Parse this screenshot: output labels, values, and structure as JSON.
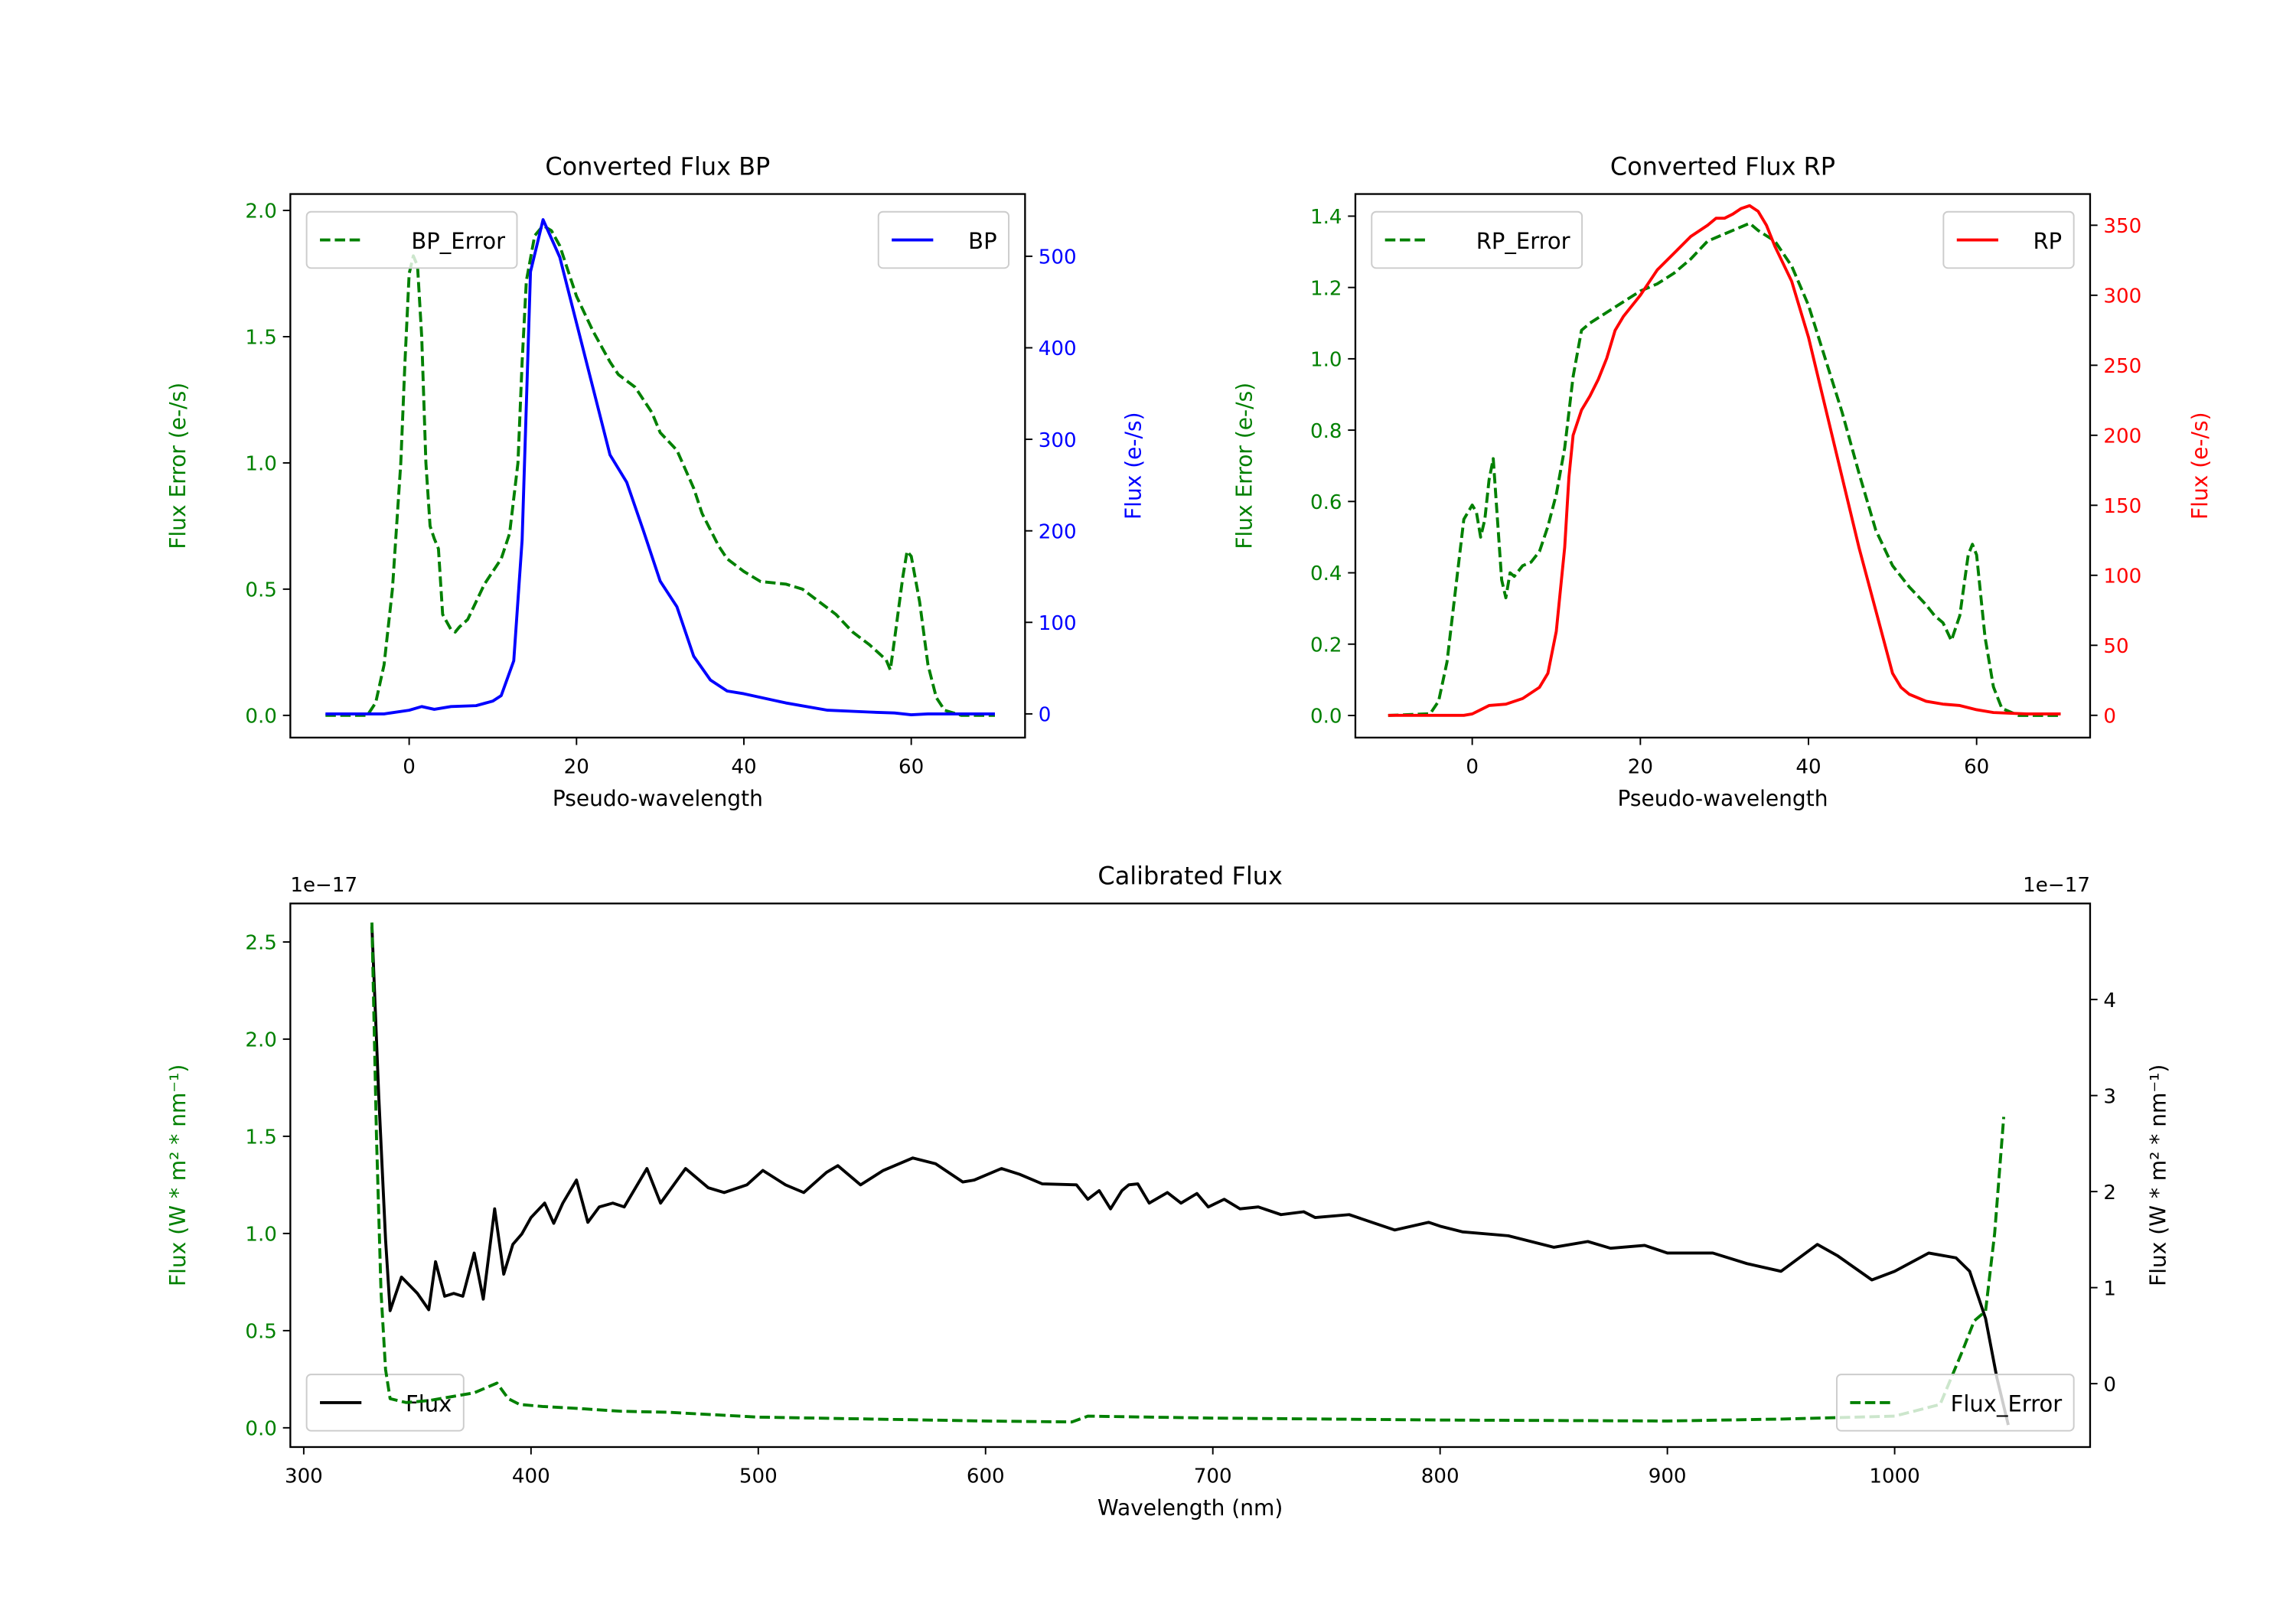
{
  "chart_data": [
    {
      "type": "line",
      "title": "Converted Flux BP",
      "xlabel": "Pseudo-wavelength",
      "ylabel_left": "Flux Error (e-/s)",
      "ylabel_right": "Flux (e-/s)",
      "ylabel_left_color": "#008000",
      "ylabel_right_color": "#0000ff",
      "xlim": [
        -14.2,
        73.6
      ],
      "ylim_left": [
        -0.088,
        2.065
      ],
      "ylim_right": [
        -25.9,
        568
      ],
      "xticks": [
        0,
        20,
        40,
        60
      ],
      "yticks_left": [
        "0.0",
        "0.5",
        "1.0",
        "1.5",
        "2.0"
      ],
      "yticks_right": [
        "0",
        "100",
        "200",
        "300",
        "400",
        "500"
      ],
      "series": [
        {
          "name": "BP_Error",
          "axis": "left",
          "color": "#008000",
          "style": "dashed",
          "legend": "top-left",
          "x": [
            -10,
            -5,
            -4,
            -3,
            -2,
            -1,
            -0.5,
            0,
            0.5,
            1,
            1.5,
            2,
            2.5,
            3,
            3.5,
            4,
            5,
            5.5,
            6,
            7,
            8,
            9,
            10,
            11,
            12,
            13,
            13.5,
            14,
            15,
            16,
            17,
            18,
            19,
            20,
            22,
            24,
            25,
            27,
            29,
            30,
            32,
            34,
            35,
            37,
            38,
            40,
            42,
            45,
            47,
            49,
            51,
            53,
            55,
            57,
            57.5,
            58,
            59,
            59.5,
            60,
            61,
            62,
            63,
            64,
            66,
            70
          ],
          "y": [
            0,
            0,
            0.05,
            0.2,
            0.5,
            1.0,
            1.4,
            1.75,
            1.82,
            1.78,
            1.5,
            1.0,
            0.75,
            0.7,
            0.66,
            0.4,
            0.34,
            0.33,
            0.35,
            0.38,
            0.45,
            0.52,
            0.57,
            0.62,
            0.72,
            1.0,
            1.4,
            1.72,
            1.9,
            1.94,
            1.92,
            1.86,
            1.76,
            1.66,
            1.52,
            1.4,
            1.35,
            1.3,
            1.2,
            1.12,
            1.05,
            0.9,
            0.8,
            0.67,
            0.62,
            0.57,
            0.53,
            0.52,
            0.5,
            0.45,
            0.4,
            0.33,
            0.28,
            0.22,
            0.18,
            0.3,
            0.55,
            0.65,
            0.63,
            0.45,
            0.2,
            0.07,
            0.02,
            0,
            0
          ]
        },
        {
          "name": "BP",
          "axis": "right",
          "color": "#0000ff",
          "style": "solid",
          "legend": "top-right",
          "x": [
            -10,
            -5,
            -3,
            0,
            1.5,
            3,
            5,
            8,
            10,
            11,
            12.5,
            13.5,
            14.5,
            16,
            18,
            20,
            22,
            24,
            26,
            28,
            30,
            32,
            34,
            36,
            38,
            40,
            45,
            50,
            55,
            58,
            60,
            62,
            65,
            70
          ],
          "y": [
            0,
            0,
            0,
            4,
            8,
            5,
            8,
            9,
            14,
            20,
            58,
            190,
            483,
            540,
            499,
            427,
            355,
            283,
            253,
            200,
            145,
            117,
            63,
            37,
            25,
            22,
            12,
            4,
            2,
            1,
            -1,
            0,
            0,
            0
          ]
        }
      ]
    },
    {
      "type": "line",
      "title": "Converted Flux RP",
      "xlabel": "Pseudo-wavelength",
      "ylabel_left": "Flux Error (e-/s)",
      "ylabel_right": "Flux (e-/s)",
      "ylabel_left_color": "#008000",
      "ylabel_right_color": "#ff0000",
      "xlim": [
        -13.9,
        73.5
      ],
      "ylim_left": [
        -0.062,
        1.462
      ],
      "ylim_right": [
        -15.9,
        372.3
      ],
      "xticks": [
        0,
        20,
        40,
        60
      ],
      "yticks_left": [
        "0.0",
        "0.2",
        "0.4",
        "0.6",
        "0.8",
        "1.0",
        "1.2",
        "1.4"
      ],
      "yticks_right": [
        "0",
        "50",
        "100",
        "150",
        "200",
        "250",
        "300",
        "350"
      ],
      "series": [
        {
          "name": "RP_Error",
          "axis": "left",
          "color": "#008000",
          "style": "dashed",
          "legend": "top-left",
          "x": [
            -10,
            -5,
            -4,
            -3,
            -2,
            -1,
            0,
            0.5,
            1,
            1.5,
            2,
            2.5,
            3,
            3.5,
            4,
            4.5,
            5,
            6,
            7,
            8,
            9,
            10,
            11,
            12,
            13,
            14,
            16,
            18,
            20,
            22,
            24,
            26,
            28,
            30,
            32,
            33,
            34,
            36,
            38,
            40,
            42,
            44,
            46,
            48,
            50,
            52,
            54,
            55,
            56,
            57,
            58,
            59,
            59.5,
            60,
            61,
            62,
            63,
            65,
            70
          ],
          "y": [
            0,
            0.005,
            0.04,
            0.15,
            0.35,
            0.55,
            0.59,
            0.57,
            0.5,
            0.55,
            0.66,
            0.72,
            0.55,
            0.38,
            0.33,
            0.4,
            0.39,
            0.42,
            0.43,
            0.46,
            0.53,
            0.62,
            0.75,
            0.95,
            1.08,
            1.1,
            1.13,
            1.16,
            1.19,
            1.21,
            1.24,
            1.28,
            1.33,
            1.35,
            1.37,
            1.38,
            1.36,
            1.33,
            1.26,
            1.15,
            1.0,
            0.85,
            0.68,
            0.52,
            0.42,
            0.36,
            0.31,
            0.28,
            0.26,
            0.21,
            0.28,
            0.45,
            0.48,
            0.45,
            0.22,
            0.08,
            0.02,
            0,
            0
          ]
        },
        {
          "name": "RP",
          "axis": "right",
          "color": "#ff0000",
          "style": "solid",
          "legend": "top-right",
          "x": [
            -10,
            -1,
            0,
            1,
            2,
            4,
            6,
            8,
            9,
            10,
            11,
            11.5,
            12,
            13,
            14,
            15,
            16,
            17,
            18,
            20,
            22,
            24,
            26,
            28,
            29,
            30,
            31,
            32,
            33,
            34,
            35,
            36,
            38,
            40,
            42,
            44,
            46,
            48,
            50,
            51,
            52,
            54,
            56,
            58,
            60,
            62,
            66,
            70
          ],
          "y": [
            0,
            0,
            1,
            4,
            7,
            8,
            12,
            20,
            30,
            60,
            120,
            170,
            200,
            218,
            228,
            240,
            255,
            275,
            285,
            300,
            318,
            330,
            342,
            350,
            355,
            355,
            358,
            362,
            364,
            360,
            350,
            335,
            310,
            270,
            220,
            170,
            120,
            75,
            30,
            20,
            15,
            10,
            8,
            7,
            4,
            2,
            1,
            1
          ]
        }
      ]
    },
    {
      "type": "line",
      "title": "Calibrated Flux",
      "xlabel": "Wavelength (nm)",
      "ylabel_left": "Flux (W * m² * nm⁻¹)",
      "ylabel_right": "Flux (W * m² * nm⁻¹)",
      "ylabel_left_color": "#008000",
      "ylabel_right_color": "#000000",
      "offset_left": "1e−17",
      "offset_right": "1e−17",
      "xlim": [
        294.1,
        1086
      ],
      "ylim_left": [
        -0.099,
        2.698
      ],
      "ylim_right": [
        -0.66,
        5.0
      ],
      "xticks": [
        300,
        400,
        500,
        600,
        700,
        800,
        900,
        1000
      ],
      "yticks_left": [
        "0.0",
        "0.5",
        "1.0",
        "1.5",
        "2.0",
        "2.5"
      ],
      "yticks_right": [
        "0",
        "1",
        "2",
        "3",
        "4"
      ],
      "series": [
        {
          "name": "Flux",
          "axis": "right",
          "color": "#000000",
          "style": "solid",
          "legend": "bottom-left",
          "x": [
            330,
            333,
            336,
            338,
            343,
            350,
            355,
            358,
            362,
            366,
            370,
            375,
            379,
            384,
            388,
            392,
            396,
            400,
            406,
            410,
            414,
            420,
            425,
            430,
            436,
            441,
            451,
            457,
            468,
            478,
            485,
            495,
            502,
            512,
            520,
            530,
            535,
            545,
            555,
            568,
            578,
            590,
            595,
            607,
            615,
            625,
            640,
            645,
            650,
            655,
            660,
            663,
            667,
            672,
            680,
            686,
            693,
            698,
            705,
            712,
            720,
            730,
            740,
            745,
            760,
            770,
            780,
            795,
            800,
            810,
            830,
            850,
            865,
            875,
            890,
            900,
            920,
            935,
            950,
            966,
            975,
            990,
            1000,
            1015,
            1027,
            1033,
            1040,
            1045,
            1050
          ],
          "y": [
            4.76,
            3.0,
            1.5,
            0.76,
            1.11,
            0.94,
            0.77,
            1.27,
            0.91,
            0.94,
            0.91,
            1.36,
            0.88,
            1.82,
            1.14,
            1.45,
            1.56,
            1.73,
            1.88,
            1.67,
            1.88,
            2.12,
            1.68,
            1.84,
            1.88,
            1.84,
            2.24,
            1.88,
            2.24,
            2.04,
            1.99,
            2.07,
            2.22,
            2.07,
            1.99,
            2.2,
            2.27,
            2.07,
            2.22,
            2.35,
            2.29,
            2.1,
            2.12,
            2.24,
            2.18,
            2.08,
            2.07,
            1.92,
            2.01,
            1.82,
            2.01,
            2.07,
            2.08,
            1.88,
            1.99,
            1.88,
            1.98,
            1.84,
            1.92,
            1.82,
            1.84,
            1.76,
            1.79,
            1.73,
            1.76,
            1.68,
            1.6,
            1.68,
            1.64,
            1.58,
            1.54,
            1.42,
            1.48,
            1.41,
            1.44,
            1.36,
            1.36,
            1.25,
            1.17,
            1.45,
            1.33,
            1.08,
            1.17,
            1.36,
            1.31,
            1.17,
            0.68,
            0.06,
            -0.43
          ]
        },
        {
          "name": "Flux_Error",
          "axis": "left",
          "color": "#008000",
          "style": "dashed",
          "legend": "bottom-right",
          "x": [
            330,
            332,
            334,
            336,
            338,
            345,
            355,
            365,
            375,
            385,
            390,
            395,
            405,
            420,
            440,
            460,
            500,
            550,
            600,
            638,
            645,
            700,
            800,
            900,
            950,
            1000,
            1020,
            1030,
            1035,
            1040,
            1044,
            1048
          ],
          "y": [
            2.6,
            1.5,
            0.7,
            0.3,
            0.15,
            0.13,
            0.14,
            0.16,
            0.18,
            0.23,
            0.15,
            0.12,
            0.11,
            0.1,
            0.085,
            0.08,
            0.055,
            0.045,
            0.035,
            0.03,
            0.06,
            0.05,
            0.04,
            0.035,
            0.045,
            0.06,
            0.12,
            0.4,
            0.55,
            0.6,
            1.0,
            1.6
          ]
        }
      ]
    }
  ]
}
